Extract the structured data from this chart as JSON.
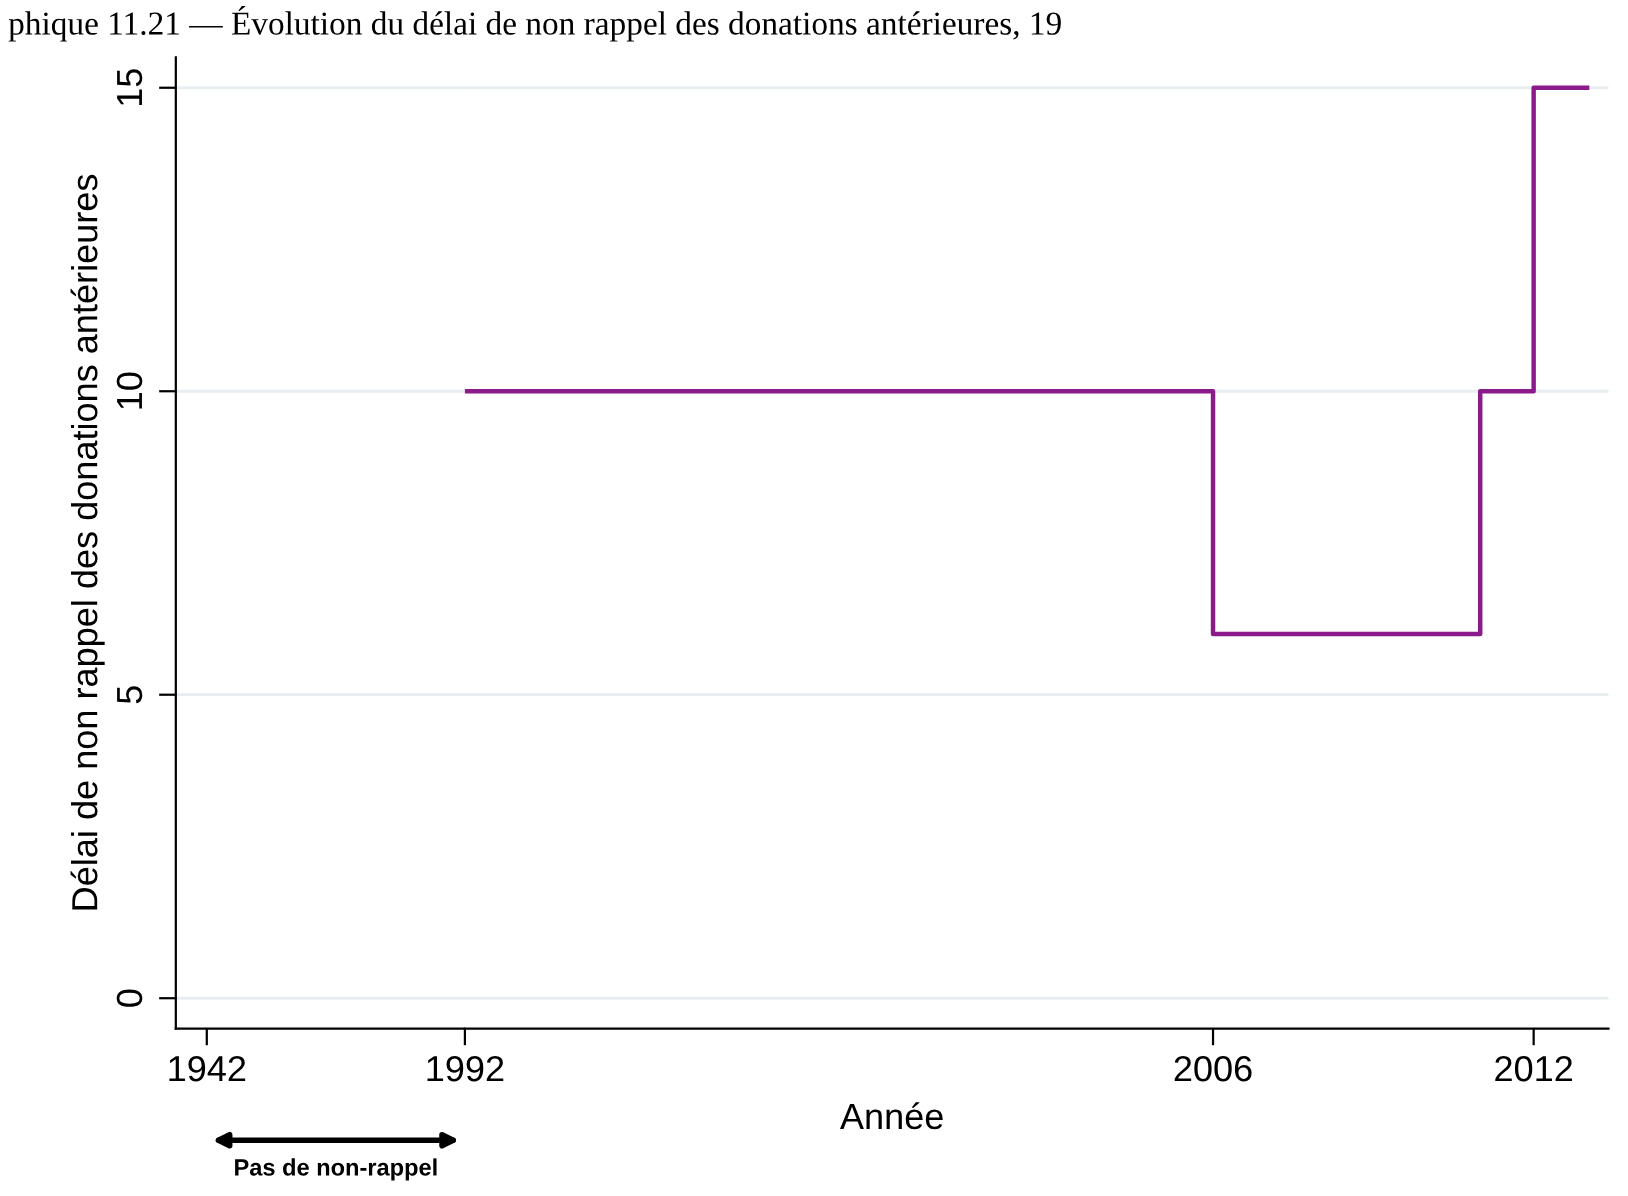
{
  "chart_data": [
    {
      "type": "step",
      "title": "phique 11.21 — Évolution du délai de non rappel des donations antérieures, 19",
      "ylabel": "Délai de non rappel des donations antérieures",
      "xlim": [
        1936,
        1992
      ],
      "xticks": [
        1942,
        1992
      ],
      "ylim": [
        -0.5,
        15.5
      ],
      "yticks": [
        0,
        5,
        10,
        15
      ],
      "grid": "y",
      "annotations": [
        "Pas de non-rappel"
      ]
    },
    {
      "type": "step",
      "xlabel": "Année",
      "x": [
        1992,
        2006,
        2011,
        2012,
        2013
      ],
      "series": [
        {
          "color": "#8b1a8b",
          "values": [
            10,
            6,
            10,
            15,
            15
          ]
        }
      ],
      "xlim": [
        1992,
        2013.4
      ],
      "xticks": [
        2006,
        2012
      ],
      "ylim": [
        -0.5,
        15.5
      ],
      "tick_labels": "x",
      "legend": false,
      "grid": "y"
    }
  ]
}
